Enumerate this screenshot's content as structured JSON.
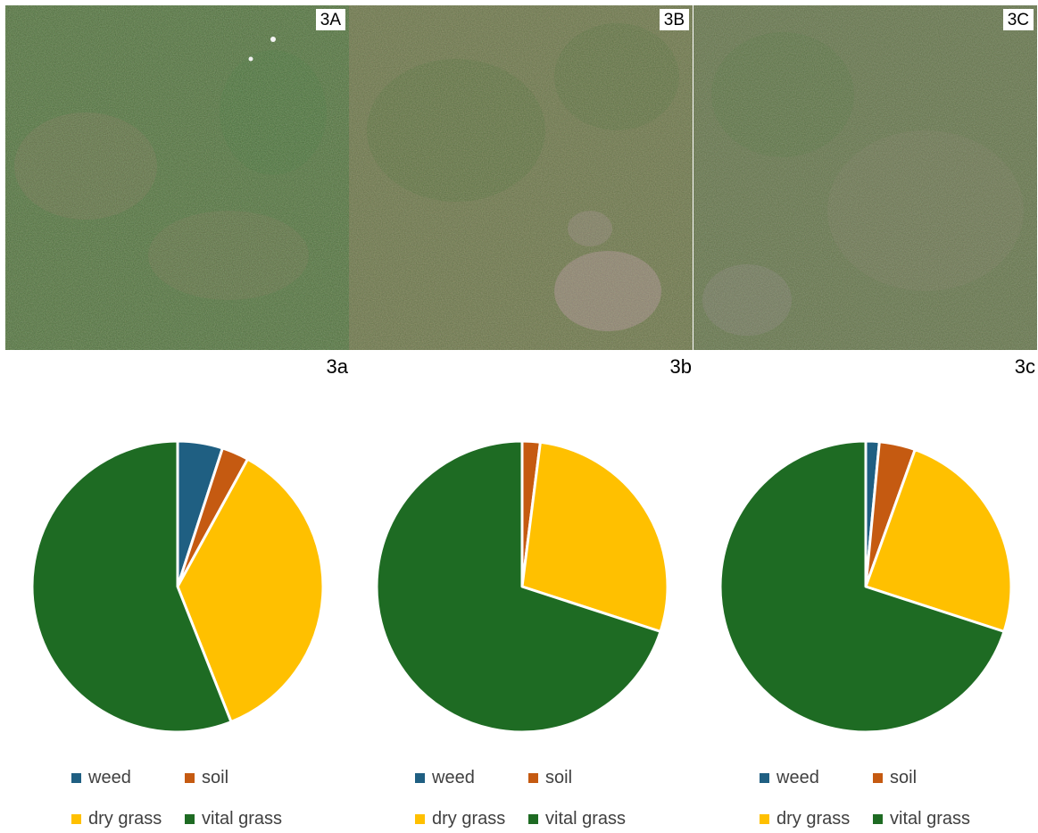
{
  "panels": [
    {
      "tag": "3A",
      "caption": "3a"
    },
    {
      "tag": "3B",
      "caption": "3b"
    },
    {
      "tag": "3C",
      "caption": "3c"
    }
  ],
  "legend_labels": [
    "weed",
    "soil",
    "dry grass",
    "vital grass"
  ],
  "colors": {
    "weed": "#1f5f82",
    "soil": "#c55a11",
    "dry_grass": "#ffc000",
    "vital_grass": "#1e6b23"
  },
  "chart_data": [
    {
      "type": "pie",
      "categories": [
        "weed",
        "soil",
        "dry grass",
        "vital grass"
      ],
      "values": [
        5,
        3,
        36,
        56
      ]
    },
    {
      "type": "pie",
      "categories": [
        "weed",
        "soil",
        "dry grass",
        "vital grass"
      ],
      "values": [
        0,
        2,
        28,
        70
      ]
    },
    {
      "type": "pie",
      "categories": [
        "weed",
        "soil",
        "dry grass",
        "vital grass"
      ],
      "values": [
        1.5,
        4,
        24.5,
        70
      ]
    }
  ]
}
